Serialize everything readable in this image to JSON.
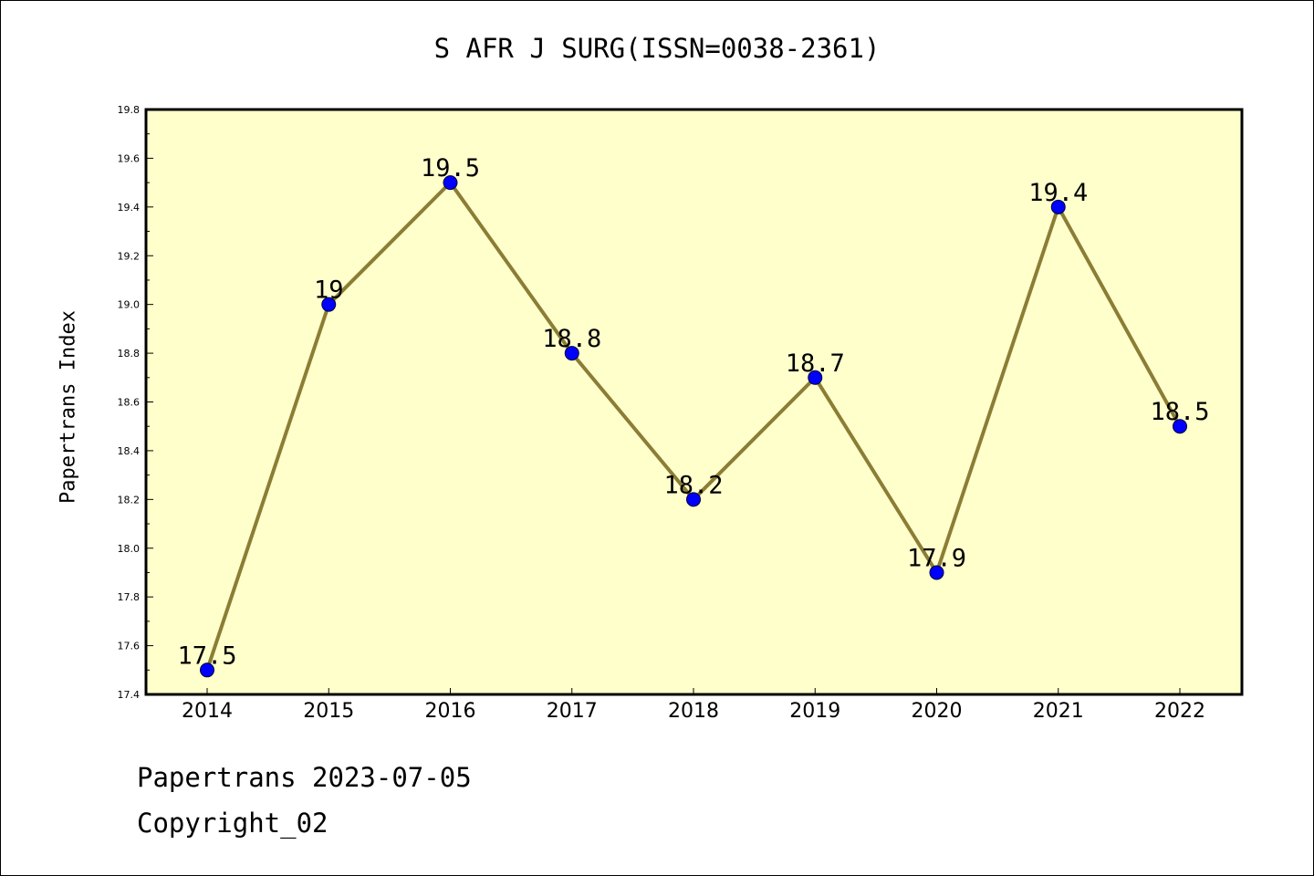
{
  "chart_data": {
    "type": "line",
    "title": "S AFR J SURG(ISSN=0038-2361)",
    "xlabel": "",
    "ylabel": "Papertrans Index",
    "categories": [
      "2014",
      "2015",
      "2016",
      "2017",
      "2018",
      "2019",
      "2020",
      "2021",
      "2022"
    ],
    "values": [
      17.5,
      19.0,
      19.5,
      18.8,
      18.2,
      18.7,
      17.9,
      19.4,
      18.5
    ],
    "data_labels": [
      "17.5",
      "19",
      "19.5",
      "18.8",
      "18.2",
      "18.7",
      "17.9",
      "19.4",
      "18.5"
    ],
    "ylim": [
      17.4,
      19.8
    ],
    "y_ticks": [
      "17.4",
      "17.6",
      "17.8",
      "18.0",
      "18.2",
      "18.4",
      "18.6",
      "18.8",
      "19.0",
      "19.2",
      "19.4",
      "19.6",
      "19.8"
    ],
    "grid": false,
    "colors": {
      "plot_background": "#ffffcc",
      "line": "#8b7d35",
      "marker": "#0000ff"
    }
  },
  "footer": {
    "date_text": "Papertrans 2023-07-05",
    "copyright_text": "Copyright_02"
  }
}
